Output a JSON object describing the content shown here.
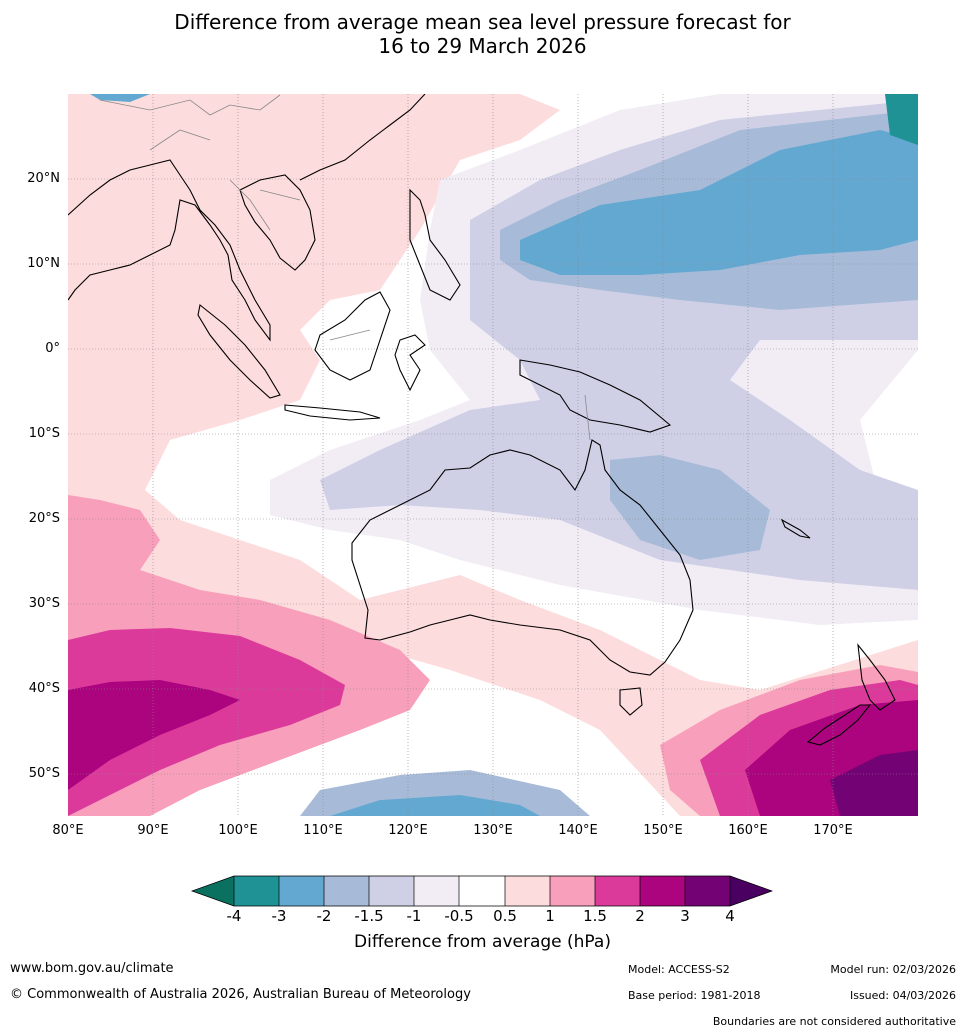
{
  "title_line1": "Difference from average mean sea level pressure forecast for",
  "title_line2": "16 to 29 March 2026",
  "lat_labels": [
    "20°N",
    "10°N",
    "0°",
    "10°S",
    "20°S",
    "30°S",
    "40°S",
    "50°S"
  ],
  "lon_labels": [
    "80°E",
    "90°E",
    "100°E",
    "110°E",
    "120°E",
    "130°E",
    "140°E",
    "150°E",
    "160°E",
    "170°E"
  ],
  "colorbar": {
    "title": "Difference from average (hPa)",
    "ticks": [
      "-4",
      "-3",
      "-2",
      "-1.5",
      "-1",
      "-0.5",
      "0.5",
      "1",
      "1.5",
      "2",
      "3",
      "4"
    ],
    "colors": {
      "below_min": "#0a7060",
      "n4_n3": "#1e9294",
      "n3_n2": "#63a8d0",
      "n2_n15": "#a7bbd9",
      "n15_n1": "#cfd0e6",
      "n1_n05": "#f2ecf5",
      "n05_05": "#ffffff",
      "p05_1": "#fddcdd",
      "p1_15": "#f89fbb",
      "p15_2": "#db3a9b",
      "p2_3": "#ac037e",
      "p3_4": "#730275",
      "above_max": "#4a0060"
    }
  },
  "footer": {
    "website": "www.bom.gov.au/climate",
    "copyright": "© Commonwealth of Australia 2026, Australian Bureau of Meteorology",
    "model": "Model: ACCESS-S2",
    "base_period": "Base period: 1981-2018",
    "model_run": "Model run: 02/03/2026",
    "issued": "Issued: 04/03/2026",
    "disclaimer": "Boundaries are not considered authoritative"
  }
}
